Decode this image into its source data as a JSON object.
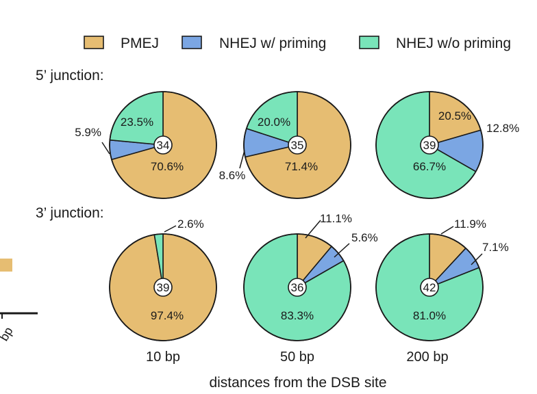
{
  "colors": {
    "PMEJ": "#e6bd72",
    "NHEJ w/ priming": "#7ba6e3",
    "NHEJ w/o priming": "#79e4b9",
    "stroke": "#1a1a1a",
    "background": "#ffffff"
  },
  "legend": {
    "placement": "top",
    "items": [
      {
        "label": "PMEJ",
        "color": "#e6bd72"
      },
      {
        "label": "NHEJ w/ priming",
        "color": "#7ba6e3"
      },
      {
        "label": "NHEJ w/o priming",
        "color": "#79e4b9"
      }
    ]
  },
  "rows": [
    {
      "label": "5’ junction:"
    },
    {
      "label": "3’ junction:"
    }
  ],
  "columns": [
    "10 bp",
    "50 bp",
    "200 bp"
  ],
  "xlabel": "distances from the DSB site",
  "partial_left": {
    "tick_label": "bp"
  },
  "chart_data": [
    {
      "type": "pie",
      "row": "5’ junction:",
      "column": "10 bp",
      "n": "34",
      "slices": [
        {
          "name": "PMEJ",
          "value": 70.6,
          "label": "70.6%"
        },
        {
          "name": "NHEJ w/ priming",
          "value": 5.9,
          "label": "5.9%"
        },
        {
          "name": "NHEJ w/o priming",
          "value": 23.5,
          "label": "23.5%"
        }
      ]
    },
    {
      "type": "pie",
      "row": "5’ junction:",
      "column": "50 bp",
      "n": "35",
      "slices": [
        {
          "name": "PMEJ",
          "value": 71.4,
          "label": "71.4%"
        },
        {
          "name": "NHEJ w/ priming",
          "value": 8.6,
          "label": "8.6%"
        },
        {
          "name": "NHEJ w/o priming",
          "value": 20.0,
          "label": "20.0%"
        }
      ]
    },
    {
      "type": "pie",
      "row": "5’ junction:",
      "column": "200 bp",
      "n": "39",
      "slices": [
        {
          "name": "PMEJ",
          "value": 20.5,
          "label": "20.5%"
        },
        {
          "name": "NHEJ w/ priming",
          "value": 12.8,
          "label": "12.8%"
        },
        {
          "name": "NHEJ w/o priming",
          "value": 66.7,
          "label": "66.7%"
        }
      ]
    },
    {
      "type": "pie",
      "row": "3’ junction:",
      "column": "10 bp",
      "n": "39",
      "slices": [
        {
          "name": "PMEJ",
          "value": 97.4,
          "label": "97.4%"
        },
        {
          "name": "NHEJ w/ priming",
          "value": 0,
          "label": ""
        },
        {
          "name": "NHEJ w/o priming",
          "value": 2.6,
          "label": "2.6%"
        }
      ]
    },
    {
      "type": "pie",
      "row": "3’ junction:",
      "column": "50 bp",
      "n": "36",
      "slices": [
        {
          "name": "PMEJ",
          "value": 11.1,
          "label": "11.1%"
        },
        {
          "name": "NHEJ w/ priming",
          "value": 5.6,
          "label": "5.6%"
        },
        {
          "name": "NHEJ w/o priming",
          "value": 83.3,
          "label": "83.3%"
        }
      ]
    },
    {
      "type": "pie",
      "row": "3’ junction:",
      "column": "200 bp",
      "n": "42",
      "slices": [
        {
          "name": "PMEJ",
          "value": 11.9,
          "label": "11.9%"
        },
        {
          "name": "NHEJ w/ priming",
          "value": 7.1,
          "label": "7.1%"
        },
        {
          "name": "NHEJ w/o priming",
          "value": 81.0,
          "label": "81.0%"
        }
      ]
    }
  ]
}
